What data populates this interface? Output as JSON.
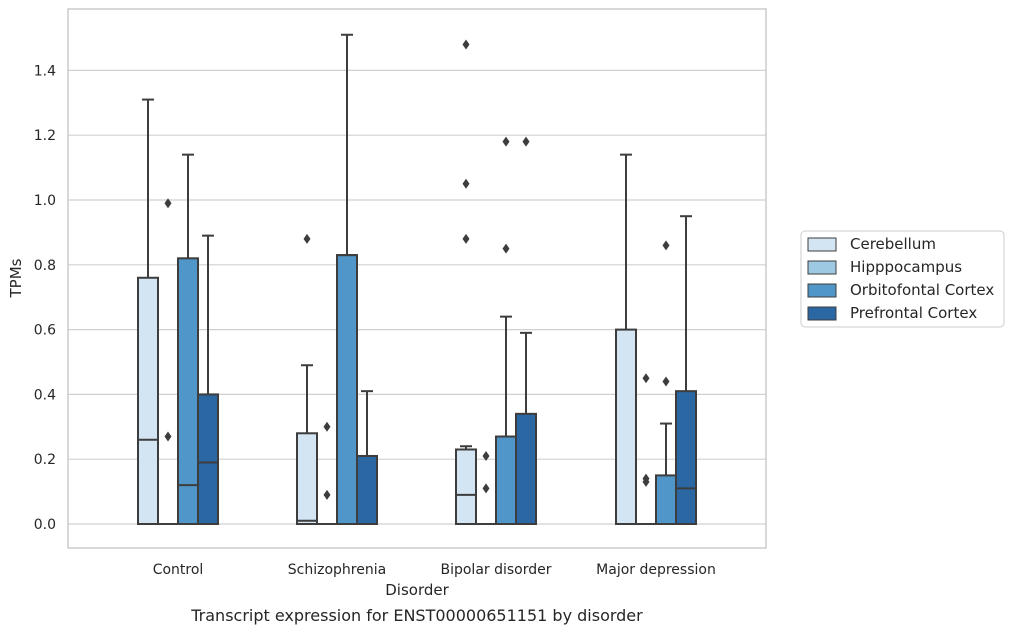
{
  "caption": "Transcript expression for ENST00000651151 by disorder",
  "chart_data": {
    "type": "boxplot",
    "xlabel": "Disorder",
    "ylabel": "TPMs",
    "ylim": [
      -0.075,
      1.58
    ],
    "yticks": [
      0.0,
      0.2,
      0.4,
      0.6,
      0.8,
      1.0,
      1.2,
      1.4
    ],
    "ytick_labels": [
      "0.0",
      "0.2",
      "0.4",
      "0.6",
      "0.8",
      "1.0",
      "1.2",
      "1.4"
    ],
    "grid": true,
    "legend_position": "right",
    "categories": [
      "Control",
      "Schizophrenia",
      "Bipolar disorder",
      "Major depression"
    ],
    "series": [
      {
        "name": "Cerebellum",
        "color": "#d3e4f3",
        "boxes": [
          {
            "q1": 0.0,
            "median": 0.26,
            "q3": 0.76,
            "whisker_low": 0.0,
            "whisker_high": 1.31,
            "outliers": []
          },
          {
            "q1": 0.0,
            "median": 0.01,
            "q3": 0.28,
            "whisker_low": 0.0,
            "whisker_high": 0.49,
            "outliers": [
              0.88
            ]
          },
          {
            "q1": 0.0,
            "median": 0.09,
            "q3": 0.23,
            "whisker_low": 0.0,
            "whisker_high": 0.24,
            "outliers": [
              0.88,
              1.05,
              1.48
            ]
          },
          {
            "q1": 0.0,
            "median": 0.0,
            "q3": 0.6,
            "whisker_low": 0.0,
            "whisker_high": 1.14,
            "outliers": []
          }
        ]
      },
      {
        "name": "Hipppocampus",
        "color": "#9ec9e2",
        "boxes": [
          {
            "q1": 0.0,
            "median": 0.0,
            "q3": 0.0,
            "whisker_low": 0.0,
            "whisker_high": 0.0,
            "outliers": [
              0.27,
              0.99
            ]
          },
          {
            "q1": 0.0,
            "median": 0.0,
            "q3": 0.0,
            "whisker_low": 0.0,
            "whisker_high": 0.0,
            "outliers": [
              0.09,
              0.3
            ]
          },
          {
            "q1": 0.0,
            "median": 0.0,
            "q3": 0.0,
            "whisker_low": 0.0,
            "whisker_high": 0.0,
            "outliers": [
              0.11,
              0.21
            ]
          },
          {
            "q1": 0.0,
            "median": 0.0,
            "q3": 0.0,
            "whisker_low": 0.0,
            "whisker_high": 0.0,
            "outliers": [
              0.13,
              0.14,
              0.45
            ]
          }
        ]
      },
      {
        "name": "Orbitofontal Cortex",
        "color": "#5096c8",
        "boxes": [
          {
            "q1": 0.0,
            "median": 0.12,
            "q3": 0.82,
            "whisker_low": 0.0,
            "whisker_high": 1.14,
            "outliers": []
          },
          {
            "q1": 0.0,
            "median": 0.83,
            "q3": 0.83,
            "whisker_low": 0.0,
            "whisker_high": 1.51,
            "outliers": []
          },
          {
            "q1": 0.0,
            "median": 0.0,
            "q3": 0.27,
            "whisker_low": 0.0,
            "whisker_high": 0.64,
            "outliers": [
              0.85,
              1.18
            ]
          },
          {
            "q1": 0.0,
            "median": 0.0,
            "q3": 0.15,
            "whisker_low": 0.0,
            "whisker_high": 0.31,
            "outliers": [
              0.44,
              0.86
            ]
          }
        ]
      },
      {
        "name": "Prefrontal Cortex",
        "color": "#2a67a3",
        "boxes": [
          {
            "q1": 0.0,
            "median": 0.19,
            "q3": 0.4,
            "whisker_low": 0.0,
            "whisker_high": 0.89,
            "outliers": []
          },
          {
            "q1": 0.0,
            "median": 0.0,
            "q3": 0.21,
            "whisker_low": 0.0,
            "whisker_high": 0.41,
            "outliers": []
          },
          {
            "q1": 0.0,
            "median": 0.0,
            "q3": 0.34,
            "whisker_low": 0.0,
            "whisker_high": 0.59,
            "outliers": [
              1.18
            ]
          },
          {
            "q1": 0.0,
            "median": 0.11,
            "q3": 0.41,
            "whisker_low": 0.0,
            "whisker_high": 0.95,
            "outliers": []
          }
        ]
      }
    ]
  }
}
